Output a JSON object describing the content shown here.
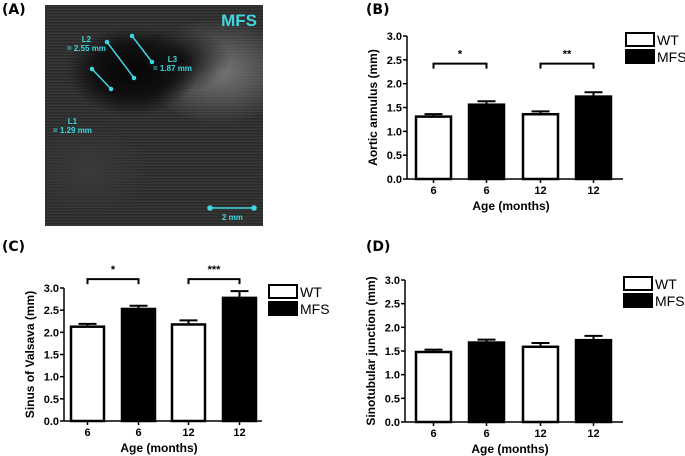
{
  "panels": {
    "A": {
      "label": "(A)",
      "image_tag": "MFS",
      "measurements": [
        {
          "name": "L1",
          "value": "= 1.29  mm"
        },
        {
          "name": "L2",
          "value": "= 2.55  mm"
        },
        {
          "name": "L3",
          "value": "= 1.87  mm"
        }
      ],
      "scale_bar": "2 mm",
      "overlay_color": "#3fd6e0"
    },
    "B": {
      "label": "(B)"
    },
    "C": {
      "label": "(C)"
    },
    "D": {
      "label": "(D)"
    }
  },
  "legend": {
    "wt": "WT",
    "mfs": "MFS"
  },
  "chart_data": [
    {
      "panel": "B",
      "type": "bar",
      "categories": [
        "6",
        "6",
        "12",
        "12"
      ],
      "groups": [
        "WT",
        "MFS",
        "WT",
        "MFS"
      ],
      "values": [
        1.33,
        1.58,
        1.38,
        1.75
      ],
      "errors": [
        0.03,
        0.05,
        0.04,
        0.07
      ],
      "xlabel": "Age (months)",
      "ylabel": "Aortic annulus (mm)",
      "ylim": [
        0,
        3.0
      ],
      "yticks": [
        "0.0",
        "0.5",
        "1.0",
        "1.5",
        "2.0",
        "2.5",
        "3.0"
      ],
      "significance": [
        {
          "between": [
            0,
            1
          ],
          "label": "*",
          "y": 2.42
        },
        {
          "between": [
            2,
            3
          ],
          "label": "**",
          "y": 2.42
        }
      ],
      "legend": [
        "WT",
        "MFS"
      ],
      "grid": false
    },
    {
      "panel": "C",
      "type": "bar",
      "categories": [
        "6",
        "6",
        "12",
        "12"
      ],
      "groups": [
        "WT",
        "MFS",
        "WT",
        "MFS"
      ],
      "values": [
        2.15,
        2.55,
        2.2,
        2.8
      ],
      "errors": [
        0.04,
        0.05,
        0.07,
        0.13
      ],
      "xlabel": "Age (months)",
      "ylabel": "Sinus of Valsava (mm)",
      "ylim": [
        0,
        3.0
      ],
      "yticks": [
        "0.0",
        "0.5",
        "1.0",
        "1.5",
        "2.0",
        "2.5",
        "3.0"
      ],
      "significance": [
        {
          "between": [
            0,
            1
          ],
          "label": "*",
          "y": 3.2
        },
        {
          "between": [
            2,
            3
          ],
          "label": "***",
          "y": 3.2
        }
      ],
      "legend": [
        "WT",
        "MFS"
      ],
      "grid": false
    },
    {
      "panel": "D",
      "type": "bar",
      "categories": [
        "6",
        "6",
        "12",
        "12"
      ],
      "groups": [
        "WT",
        "MFS",
        "WT",
        "MFS"
      ],
      "values": [
        1.5,
        1.7,
        1.61,
        1.75
      ],
      "errors": [
        0.03,
        0.04,
        0.06,
        0.07
      ],
      "xlabel": "Age (months)",
      "ylabel": "Sinotubular junction (mm)",
      "ylim": [
        0,
        3.0
      ],
      "yticks": [
        "0.0",
        "0.5",
        "1.0",
        "1.5",
        "2.0",
        "2.5",
        "3.0"
      ],
      "significance": [],
      "legend": [
        "WT",
        "MFS"
      ],
      "grid": false
    }
  ]
}
